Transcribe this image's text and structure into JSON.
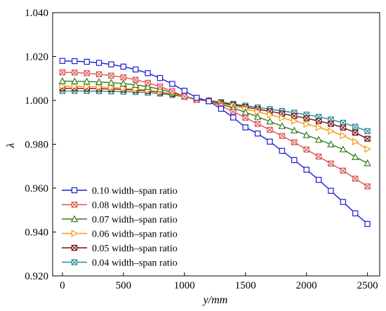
{
  "chart_data": {
    "type": "line",
    "title": "",
    "xlabel": "y/mm",
    "ylabel": "λ",
    "xlim": [
      -80,
      2600
    ],
    "ylim": [
      0.92,
      1.04
    ],
    "x_ticks": [
      0,
      500,
      1000,
      1500,
      2000,
      2500
    ],
    "y_ticks": [
      0.92,
      0.94,
      0.96,
      0.98,
      1.0,
      1.02,
      1.04
    ],
    "x_tick_labels": [
      "0",
      "500",
      "1000",
      "1500",
      "2000",
      "2500"
    ],
    "y_tick_labels": [
      "0.920",
      "0.940",
      "0.960",
      "0.980",
      "1.000",
      "1.020",
      "1.040"
    ],
    "grid": false,
    "legend_position": "bottom-left",
    "x": [
      0,
      100,
      200,
      300,
      400,
      500,
      600,
      700,
      800,
      900,
      1000,
      1100,
      1200,
      1300,
      1400,
      1500,
      1600,
      1700,
      1800,
      1900,
      2000,
      2100,
      2200,
      2300,
      2400,
      2500
    ],
    "series": [
      {
        "name": "0.10 width–span ratio",
        "color": "#1c1cd6",
        "marker": "square",
        "values": [
          1.018,
          1.0179,
          1.0176,
          1.0171,
          1.0164,
          1.0154,
          1.0141,
          1.0124,
          1.0102,
          1.0075,
          1.0044,
          1.0012,
          0.9996,
          0.9962,
          0.9922,
          0.9877,
          0.9849,
          0.9812,
          0.977,
          0.9728,
          0.9684,
          0.9638,
          0.9588,
          0.9537,
          0.9485,
          0.9437
        ]
      },
      {
        "name": "0.08 width–span ratio",
        "color": "#d9534f",
        "marker": "x-square",
        "values": [
          1.0128,
          1.0127,
          1.0124,
          1.0119,
          1.0113,
          1.0105,
          1.0094,
          1.008,
          1.0063,
          1.0042,
          1.0018,
          1.0002,
          0.9998,
          0.9975,
          0.9949,
          0.9921,
          0.9893,
          0.9866,
          0.9838,
          0.9809,
          0.9776,
          0.9744,
          0.9712,
          0.968,
          0.9643,
          0.9608
        ]
      },
      {
        "name": "0.07 width–span ratio",
        "color": "#2e7d1e",
        "marker": "triangle",
        "values": [
          1.0088,
          1.0087,
          1.0086,
          1.0084,
          1.0081,
          1.0077,
          1.0071,
          1.0062,
          1.0051,
          1.0036,
          1.0019,
          1.0005,
          0.9999,
          0.9983,
          0.9965,
          0.9946,
          0.9925,
          0.9904,
          0.9883,
          0.9863,
          0.9842,
          0.9821,
          0.98,
          0.9777,
          0.9742,
          0.9714
        ]
      },
      {
        "name": "0.06 width–span ratio",
        "color": "#f39c12",
        "marker": "triangle-right",
        "values": [
          1.0065,
          1.0064,
          1.0063,
          1.0061,
          1.0059,
          1.0056,
          1.0052,
          1.0047,
          1.0039,
          1.003,
          1.0018,
          1.0004,
          0.9999,
          0.9986,
          0.9974,
          0.9961,
          0.9948,
          0.9934,
          0.992,
          0.9906,
          0.9892,
          0.9877,
          0.986,
          0.9839,
          0.9812,
          0.9778
        ]
      },
      {
        "name": "0.05 width–span ratio",
        "color": "#6b0f0f",
        "marker": "x-square",
        "values": [
          1.0055,
          1.0055,
          1.0054,
          1.0053,
          1.0052,
          1.005,
          1.0047,
          1.0043,
          1.0037,
          1.0029,
          1.0018,
          1.0005,
          0.9999,
          0.9989,
          0.998,
          0.997,
          0.996,
          0.995,
          0.994,
          0.9929,
          0.9918,
          0.9906,
          0.9893,
          0.9876,
          0.9853,
          0.9825
        ]
      },
      {
        "name": "0.04 width–span ratio",
        "color": "#2a8a96",
        "marker": "x-square",
        "values": [
          1.0043,
          1.0043,
          1.0043,
          1.0042,
          1.0041,
          1.004,
          1.0038,
          1.0035,
          1.0031,
          1.0025,
          1.0016,
          1.0005,
          1.0,
          0.9992,
          0.9984,
          0.9976,
          0.9968,
          0.996,
          0.9952,
          0.9944,
          0.9935,
          0.9925,
          0.9913,
          0.9898,
          0.988,
          0.986
        ]
      }
    ]
  }
}
